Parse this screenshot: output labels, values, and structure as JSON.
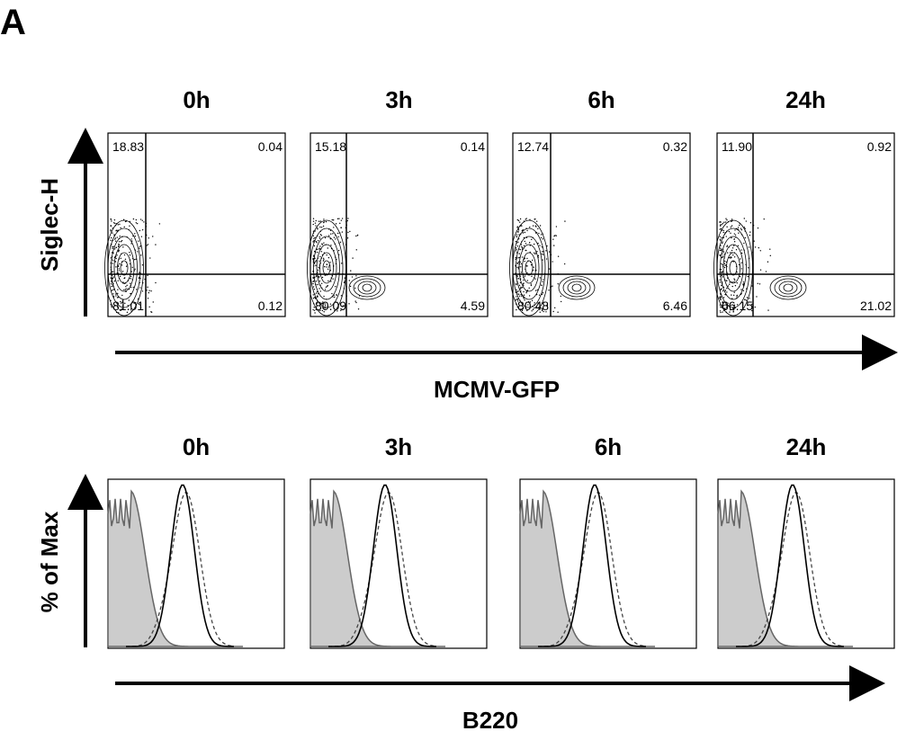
{
  "panel_label": "A",
  "top": {
    "timepoints": [
      "0h",
      "3h",
      "6h",
      "24h"
    ],
    "y_label": "Siglec-H",
    "x_label": "MCMV-GFP",
    "quadrants": [
      [
        "18.83",
        "0.04",
        "81.01",
        "0.12"
      ],
      [
        "15.18",
        "0.14",
        "80.09",
        "4.59"
      ],
      [
        "12.74",
        "0.32",
        "80.48",
        "6.46"
      ],
      [
        "11.90",
        "0.92",
        "66.15",
        "21.02"
      ]
    ]
  },
  "bottom": {
    "timepoints": [
      "0h",
      "3h",
      "6h",
      "24h"
    ],
    "y_label": "% of Max",
    "x_label": "B220"
  }
}
